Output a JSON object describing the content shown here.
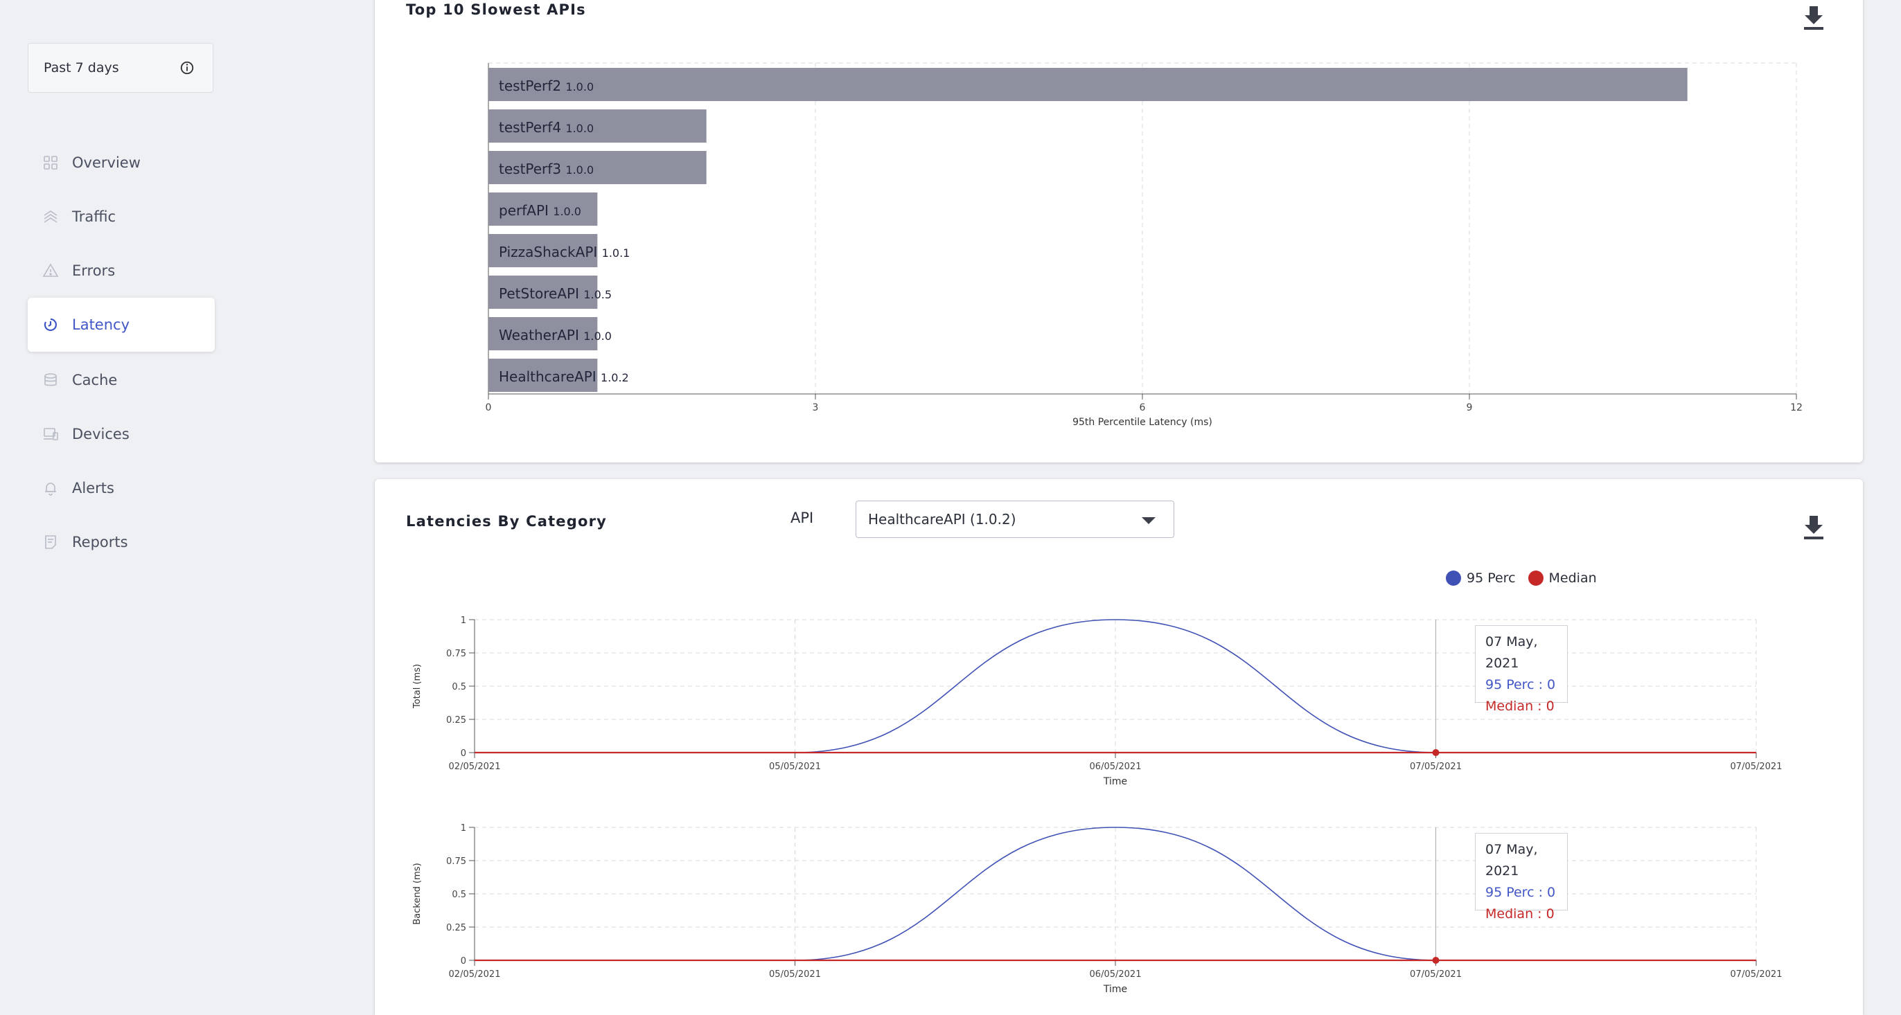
{
  "sidebar": {
    "date_range": "Past 7 days",
    "items": [
      {
        "label": "Overview",
        "icon": "overview-grid-icon"
      },
      {
        "label": "Traffic",
        "icon": "traffic-layers-icon"
      },
      {
        "label": "Errors",
        "icon": "warning-triangle-icon"
      },
      {
        "label": "Latency",
        "icon": "latency-clock-icon",
        "active": true
      },
      {
        "label": "Cache",
        "icon": "database-icon"
      },
      {
        "label": "Devices",
        "icon": "devices-icon"
      },
      {
        "label": "Alerts",
        "icon": "bell-icon"
      },
      {
        "label": "Reports",
        "icon": "report-document-icon"
      }
    ]
  },
  "slowest": {
    "title": "Top 10 Slowest APIs"
  },
  "latencies": {
    "title": "Latencies By Category",
    "api_label": "API",
    "api_value": "HealthcareAPI (1.0.2)",
    "legend": [
      {
        "label": "95 Perc",
        "color": "#3f51b5"
      },
      {
        "label": "Median",
        "color": "#c62828"
      }
    ],
    "tooltips": [
      {
        "date": "07 May, 2021",
        "perc": "95 Perc : 0",
        "median": "Median : 0"
      },
      {
        "date": "07 May, 2021",
        "perc": "95 Perc : 0",
        "median": "Median : 0"
      }
    ]
  },
  "colors": {
    "accent": "#4257c7",
    "bar": "#8e909f",
    "perc": "#3f51b5",
    "median": "#c62828"
  },
  "chart_data": [
    {
      "type": "bar",
      "orientation": "horizontal",
      "title": "Top 10 Slowest APIs",
      "xlabel": "95th Percentile Latency (ms)",
      "xlim": [
        0,
        12
      ],
      "xticks": [
        0,
        3,
        6,
        9,
        12
      ],
      "grid": true,
      "bars": [
        {
          "name": "testPerf2",
          "version": "1.0.0",
          "value": 11
        },
        {
          "name": "testPerf4",
          "version": "1.0.0",
          "value": 2
        },
        {
          "name": "testPerf3",
          "version": "1.0.0",
          "value": 2
        },
        {
          "name": "perfAPI",
          "version": "1.0.0",
          "value": 1
        },
        {
          "name": "PizzaShackAPI",
          "version": "1.0.1",
          "value": 1
        },
        {
          "name": "PetStoreAPI",
          "version": "1.0.5",
          "value": 1
        },
        {
          "name": "WeatherAPI",
          "version": "1.0.0",
          "value": 1
        },
        {
          "name": "HealthcareAPI",
          "version": "1.0.2",
          "value": 1
        }
      ]
    },
    {
      "type": "line",
      "ylabel": "Total (ms)",
      "xlabel": "Time",
      "ylim": [
        0,
        1
      ],
      "yticks": [
        "0",
        "0.25",
        "0.5",
        "0.75",
        "1"
      ],
      "xticks": [
        "02/05/2021",
        "05/05/2021",
        "06/05/2021",
        "07/05/2021",
        "07/05/2021"
      ],
      "grid": true,
      "series": [
        {
          "name": "95 Perc",
          "values": [
            0,
            0,
            1,
            0,
            0
          ]
        },
        {
          "name": "Median",
          "values": [
            0,
            0,
            0,
            0,
            0
          ]
        }
      ]
    },
    {
      "type": "line",
      "ylabel": "Backend (ms)",
      "xlabel": "Time",
      "ylim": [
        0,
        1
      ],
      "yticks": [
        "0",
        "0.25",
        "0.5",
        "0.75",
        "1"
      ],
      "xticks": [
        "02/05/2021",
        "05/05/2021",
        "06/05/2021",
        "07/05/2021",
        "07/05/2021"
      ],
      "grid": true,
      "series": [
        {
          "name": "95 Perc",
          "values": [
            0,
            0,
            1,
            0,
            0
          ]
        },
        {
          "name": "Median",
          "values": [
            0,
            0,
            0,
            0,
            0
          ]
        }
      ]
    }
  ]
}
